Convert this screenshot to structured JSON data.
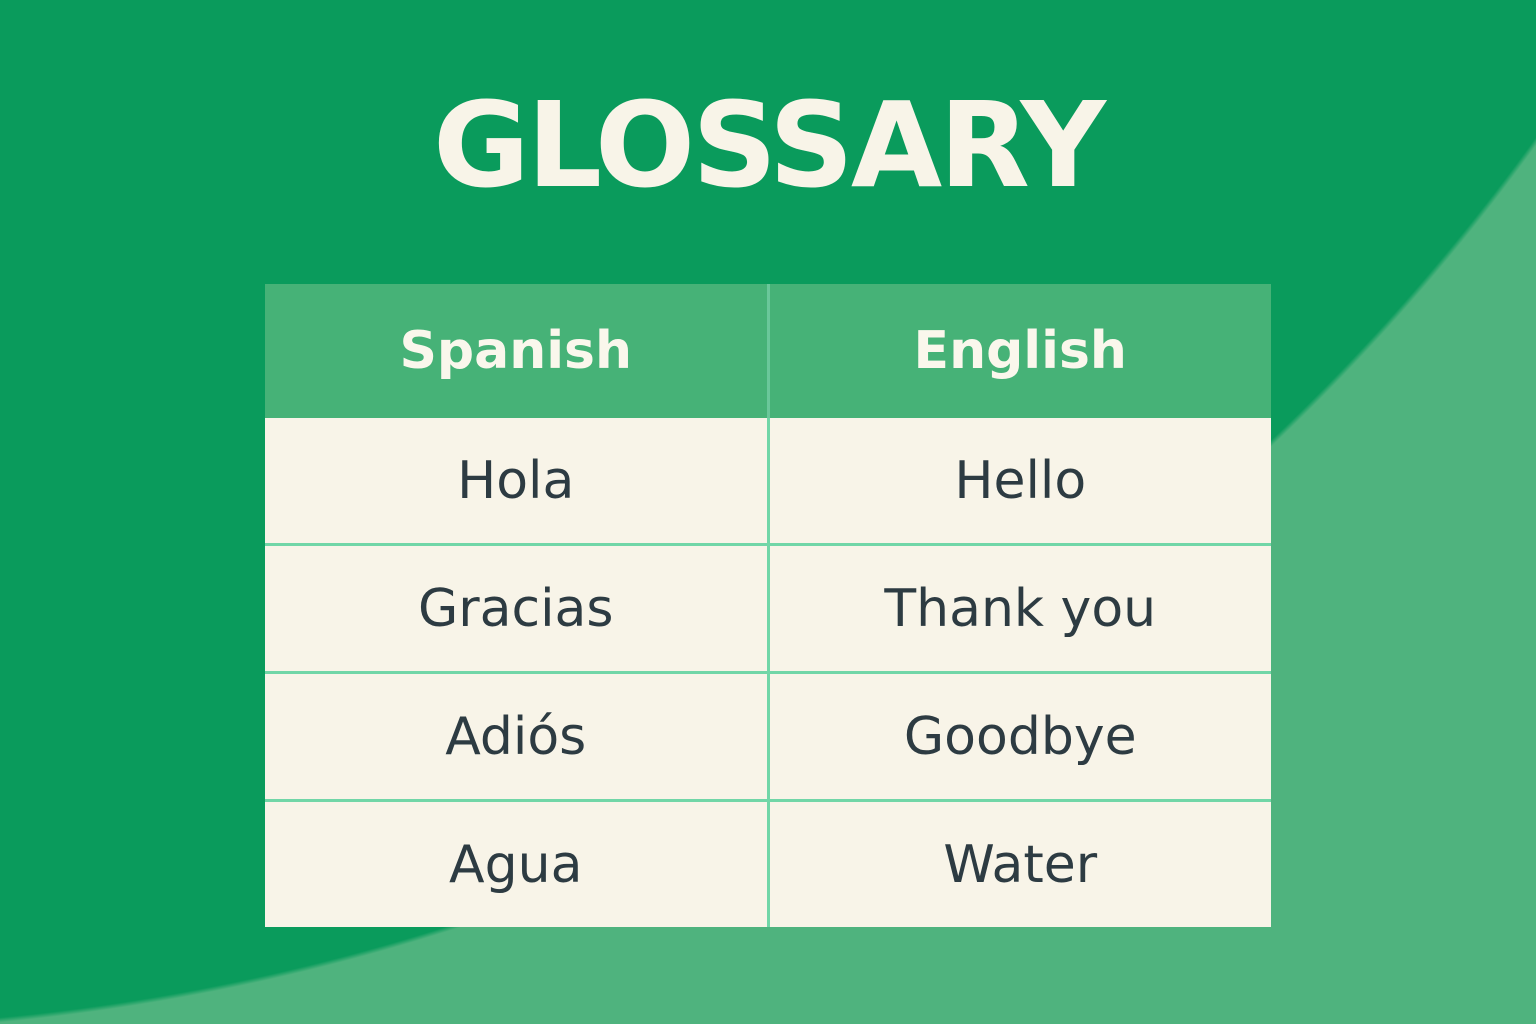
{
  "card": {
    "title": "GLOSSARY"
  },
  "glossary_table": {
    "headers": [
      "Spanish",
      "English"
    ],
    "rows": [
      [
        "Hola",
        "Hello"
      ],
      [
        "Gracias",
        "Thank you"
      ],
      [
        "Adiós",
        "Goodbye"
      ],
      [
        "Agua",
        "Water"
      ]
    ]
  },
  "colors": {
    "background_dark_green": "#0A9B5C",
    "background_light_green": "#4FB37E",
    "header_green": "#46B277",
    "divider_mint": "#71D6A7",
    "cell_cream": "#F8F4E8",
    "title_cream": "#F8F4E8",
    "text_dark": "#2D3B42"
  }
}
